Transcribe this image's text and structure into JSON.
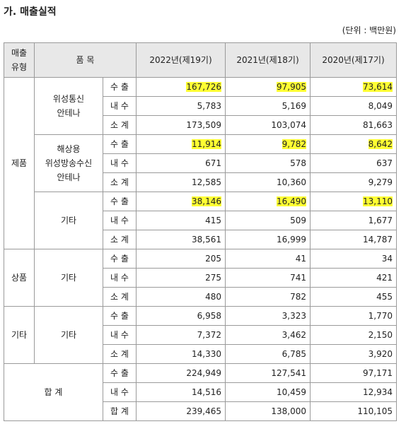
{
  "title": "가. 매출실적",
  "unit": "(단위 : 백만원)",
  "table": {
    "header": [
      "매출\n유형",
      "품 목",
      "2022년(제19기)",
      "2021년(제18기)",
      "2020년(제17기)"
    ],
    "groups": [
      {
        "type": "제품",
        "items": [
          {
            "name": "위성통신\n안테나",
            "rows": [
              [
                "수 출",
                "167,726",
                "97,905",
                "73,614"
              ],
              [
                "내 수",
                "5,783",
                "5,169",
                "8,049"
              ],
              [
                "소 계",
                "173,509",
                "103,074",
                "81,663"
              ]
            ]
          },
          {
            "name": "해상용\n위성방송수신\n안테나",
            "rows": [
              [
                "수 출",
                "11,914",
                "9,782",
                "8,642"
              ],
              [
                "내 수",
                "671",
                "578",
                "637"
              ],
              [
                "소 계",
                "12,585",
                "10,360",
                "9,279"
              ]
            ]
          },
          {
            "name": "기타",
            "rows": [
              [
                "수 출",
                "38,146",
                "16,490",
                "13,110"
              ],
              [
                "내 수",
                "415",
                "509",
                "1,677"
              ],
              [
                "소 계",
                "38,561",
                "16,999",
                "14,787"
              ]
            ]
          }
        ]
      },
      {
        "type": "상품",
        "items": [
          {
            "name": "기타",
            "rows": [
              [
                "수 출",
                "205",
                "41",
                "34"
              ],
              [
                "내 수",
                "275",
                "741",
                "421"
              ],
              [
                "소 계",
                "480",
                "782",
                "455"
              ]
            ]
          }
        ]
      },
      {
        "type": "기타",
        "items": [
          {
            "name": "기타",
            "rows": [
              [
                "수 출",
                "6,958",
                "3,323",
                "1,770"
              ],
              [
                "내 수",
                "7,372",
                "3,462",
                "2,150"
              ],
              [
                "소 계",
                "14,330",
                "6,785",
                "3,920"
              ]
            ]
          }
        ]
      },
      {
        "type": "합 계",
        "rows": [
          [
            "수 출",
            "224,949",
            "127,541",
            "97,171"
          ],
          [
            "내 수",
            "14,516",
            "10,459",
            "12,934"
          ],
          [
            "합 계",
            "239,465",
            "138,000",
            "110,105"
          ]
        ]
      }
    ]
  }
}
